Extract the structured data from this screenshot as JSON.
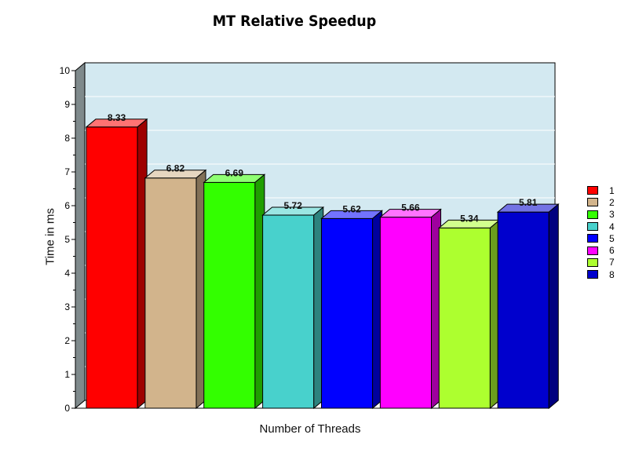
{
  "chart_data": {
    "type": "bar",
    "title": "MT Relative Speedup",
    "xlabel": "Number of Threads",
    "ylabel": "Time in ms",
    "ylim": [
      0,
      10
    ],
    "yticks": [
      "0",
      "1",
      "2",
      "3",
      "4",
      "5",
      "6",
      "7",
      "8",
      "9",
      "10"
    ],
    "grid": true,
    "legend_position": "right",
    "categories": [
      "1",
      "2",
      "3",
      "4",
      "5",
      "6",
      "7",
      "8"
    ],
    "values": [
      8.33,
      6.82,
      6.69,
      5.72,
      5.62,
      5.66,
      5.34,
      5.81
    ],
    "data_labels": [
      "8.33",
      "6.82",
      "6.69",
      "5.72",
      "5.62",
      "5.66",
      "5.34",
      "5.81"
    ],
    "colors": [
      "#ff0000",
      "#d2b48c",
      "#33ff00",
      "#48d1cc",
      "#0000ff",
      "#ff00ff",
      "#adff2f",
      "#0000cd"
    ],
    "plot_background": "#d3e9f1"
  }
}
